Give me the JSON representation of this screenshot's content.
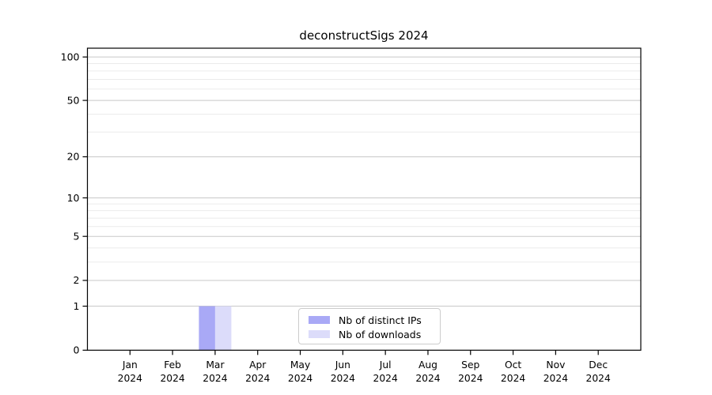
{
  "chart_data": {
    "type": "bar",
    "title": "deconstructSigs 2024",
    "categories": [
      "Jan 2024",
      "Feb 2024",
      "Mar 2024",
      "Apr 2024",
      "May 2024",
      "Jun 2024",
      "Jul 2024",
      "Aug 2024",
      "Sep 2024",
      "Oct 2024",
      "Nov 2024",
      "Dec 2024"
    ],
    "series": [
      {
        "name": "Nb of distinct IPs",
        "color": "#a9a9f6",
        "values": [
          0,
          0,
          1,
          0,
          0,
          0,
          0,
          0,
          0,
          0,
          0,
          0
        ]
      },
      {
        "name": "Nb of downloads",
        "color": "#dcdcfa",
        "values": [
          0,
          0,
          1,
          0,
          0,
          0,
          0,
          0,
          0,
          0,
          0,
          0
        ]
      }
    ],
    "xlabel": "",
    "ylabel": "",
    "yscale": "log1p",
    "ylim": [
      0,
      115
    ],
    "y_major_ticks": [
      0,
      1,
      2,
      5,
      10,
      20,
      50,
      100
    ],
    "y_minor_gridlines": [
      3,
      4,
      6,
      7,
      8,
      9,
      30,
      40,
      60,
      70,
      80,
      90
    ],
    "grid": "horizontal",
    "legend_position": "lower center",
    "colors": {
      "background": "#ffffff",
      "axis": "#000000",
      "text": "#000000",
      "grid_major": "#c8c8c8",
      "grid_minor": "#ebebeb",
      "legend_border": "#cccccc"
    }
  }
}
